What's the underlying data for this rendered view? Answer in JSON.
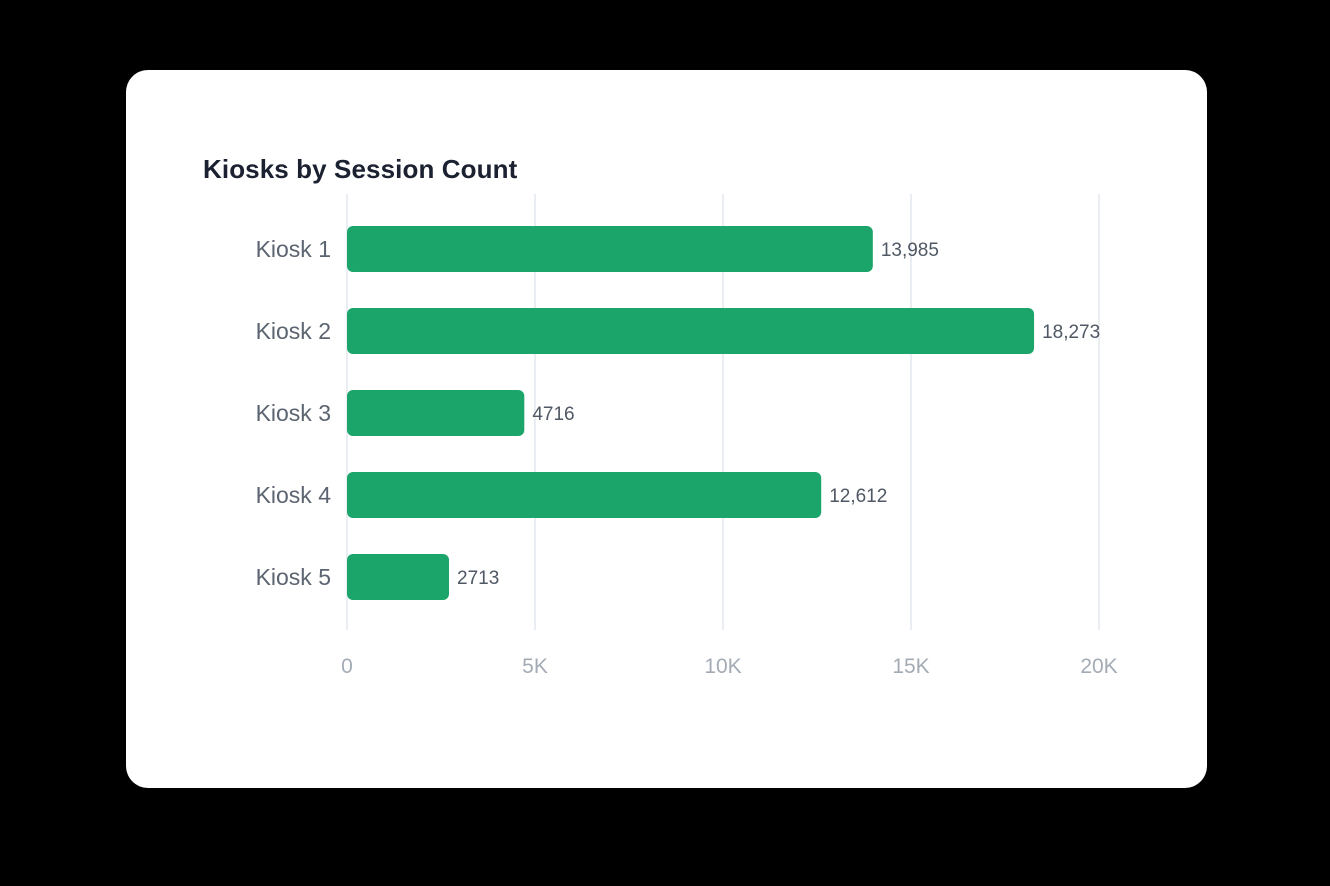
{
  "chart_data": {
    "type": "bar",
    "orientation": "horizontal",
    "title": "Kiosks by Session Count",
    "categories": [
      "Kiosk 1",
      "Kiosk 2",
      "Kiosk 3",
      "Kiosk 4",
      "Kiosk 5"
    ],
    "values": [
      13985,
      18273,
      4716,
      12612,
      2713
    ],
    "value_labels": [
      "13,985",
      "18,273",
      "4716",
      "12,612",
      "2713"
    ],
    "xlim": [
      0,
      20000
    ],
    "xticks": [
      0,
      5000,
      10000,
      15000,
      20000
    ],
    "xtick_labels": [
      "0",
      "5K",
      "10K",
      "15K",
      "20K"
    ],
    "xlabel": "",
    "ylabel": "",
    "grid": true,
    "legend": "none",
    "bar_color": "#1ca56a"
  }
}
